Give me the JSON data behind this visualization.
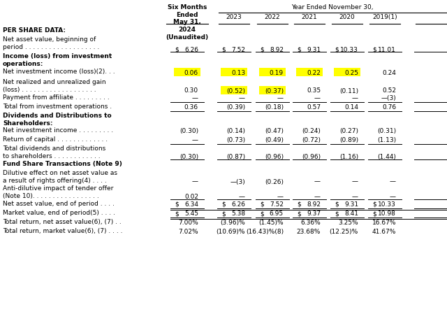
{
  "bg_color": "#FFFFFF",
  "text_color": "#000000",
  "highlight_color": "#FFFF00",
  "year_ended_label": "Year Ended November 30,",
  "col0_header": "Six Months\nEnded\nMay 31,\n2024\n(Unaudited)",
  "year_cols": [
    "2023",
    "2022",
    "2021",
    "2020",
    "2019(1)"
  ],
  "font_size": 6.5,
  "rows": [
    {
      "label": "PER SHARE DATA:",
      "bold": true,
      "italic": false,
      "vals": [
        "",
        "",
        "",
        "",
        "",
        ""
      ],
      "dollar": [
        0,
        0,
        0,
        0,
        0,
        0
      ],
      "hl": [
        0,
        0,
        0,
        0,
        0,
        0
      ],
      "ul": 0,
      "double_ul": 0,
      "val_align": "bottom"
    },
    {
      "label": "Net asset value, beginning of\nperiod . . . . . . . . . . . . . . . . . . .",
      "bold": false,
      "italic": false,
      "vals": [
        "6.26",
        "7.52",
        "8.92",
        "9.31",
        "10.33",
        "11.01"
      ],
      "dollar": [
        1,
        1,
        1,
        1,
        1,
        1
      ],
      "hl": [
        0,
        0,
        0,
        0,
        0,
        0
      ],
      "ul": 1,
      "double_ul": 0,
      "val_align": "bottom"
    },
    {
      "label": "Income (loss) from investment\noperations:",
      "bold": true,
      "italic": false,
      "vals": [
        "",
        "",
        "",
        "",
        "",
        ""
      ],
      "dollar": [
        0,
        0,
        0,
        0,
        0,
        0
      ],
      "hl": [
        0,
        0,
        0,
        0,
        0,
        0
      ],
      "ul": 0,
      "double_ul": 0,
      "val_align": "bottom"
    },
    {
      "label": "Net investment income (loss)(2). . .",
      "bold": false,
      "italic": false,
      "vals": [
        "0.06",
        "0.13",
        "0.19",
        "0.22",
        "0.25",
        "0.24"
      ],
      "dollar": [
        0,
        0,
        0,
        0,
        0,
        0
      ],
      "hl": [
        1,
        1,
        1,
        1,
        1,
        0
      ],
      "ul": 0,
      "double_ul": 0,
      "val_align": "center"
    },
    {
      "label": "Net realized and unrealized gain\n(loss) . . . . . . . . . . . . . . . . . . .",
      "bold": false,
      "italic": false,
      "vals": [
        "0.30",
        "(0.52)",
        "(0.37)",
        "0.35",
        "(0.11)",
        "0.52"
      ],
      "dollar": [
        0,
        0,
        0,
        0,
        0,
        0
      ],
      "hl": [
        0,
        1,
        1,
        0,
        0,
        0
      ],
      "ul": 0,
      "double_ul": 0,
      "val_align": "bottom"
    },
    {
      "label": "Payment from affiliate . . . . . . . . .",
      "bold": false,
      "italic": false,
      "vals": [
        "—",
        "—",
        "—",
        "—",
        "—",
        "—(3)"
      ],
      "dollar": [
        0,
        0,
        0,
        0,
        0,
        0
      ],
      "hl": [
        0,
        0,
        0,
        0,
        0,
        0
      ],
      "ul": 1,
      "double_ul": 0,
      "val_align": "center"
    },
    {
      "label": "Total from investment operations .",
      "bold": false,
      "italic": false,
      "vals": [
        "0.36",
        "(0.39)",
        "(0.18)",
        "0.57",
        "0.14",
        "0.76"
      ],
      "dollar": [
        0,
        0,
        0,
        0,
        0,
        0
      ],
      "hl": [
        0,
        0,
        0,
        0,
        0,
        0
      ],
      "ul": 1,
      "double_ul": 0,
      "val_align": "center"
    },
    {
      "label": "Dividends and Distributions to\nShareholders:",
      "bold": true,
      "italic": false,
      "vals": [
        "",
        "",
        "",
        "",
        "",
        ""
      ],
      "dollar": [
        0,
        0,
        0,
        0,
        0,
        0
      ],
      "hl": [
        0,
        0,
        0,
        0,
        0,
        0
      ],
      "ul": 0,
      "double_ul": 0,
      "val_align": "bottom"
    },
    {
      "label": "Net investment income . . . . . . . . .",
      "bold": false,
      "italic": false,
      "vals": [
        "(0.30)",
        "(0.14)",
        "(0.47)",
        "(0.24)",
        "(0.27)",
        "(0.31)"
      ],
      "dollar": [
        0,
        0,
        0,
        0,
        0,
        0
      ],
      "hl": [
        0,
        0,
        0,
        0,
        0,
        0
      ],
      "ul": 0,
      "double_ul": 0,
      "val_align": "center"
    },
    {
      "label": "Return of capital . . . . . . . . . . . . .",
      "bold": false,
      "italic": false,
      "vals": [
        "—",
        "(0.73)",
        "(0.49)",
        "(0.72)",
        "(0.89)",
        "(1.13)"
      ],
      "dollar": [
        0,
        0,
        0,
        0,
        0,
        0
      ],
      "hl": [
        0,
        0,
        0,
        0,
        0,
        0
      ],
      "ul": 1,
      "double_ul": 0,
      "val_align": "center"
    },
    {
      "label": "Total dividends and distributions\nto shareholders . . . . . . . . . . . .",
      "bold": false,
      "italic": false,
      "vals": [
        "(0.30)",
        "(0.87)",
        "(0.96)",
        "(0.96)",
        "(1.16)",
        "(1.44)"
      ],
      "dollar": [
        0,
        0,
        0,
        0,
        0,
        0
      ],
      "hl": [
        0,
        0,
        0,
        0,
        0,
        0
      ],
      "ul": 1,
      "double_ul": 0,
      "val_align": "bottom"
    },
    {
      "label": "Fund Share Transactions (Note 9)",
      "bold": true,
      "italic": false,
      "vals": [
        "",
        "",
        "",
        "",
        "",
        ""
      ],
      "dollar": [
        0,
        0,
        0,
        0,
        0,
        0
      ],
      "hl": [
        0,
        0,
        0,
        0,
        0,
        0
      ],
      "ul": 0,
      "double_ul": 0,
      "val_align": "bottom"
    },
    {
      "label": "Dilutive effect on net asset value as\na result of rights offering(4) . . . .",
      "bold": false,
      "italic": false,
      "vals": [
        "—",
        "—(3)",
        "(0.26)",
        "—",
        "—",
        "—"
      ],
      "dollar": [
        0,
        0,
        0,
        0,
        0,
        0
      ],
      "hl": [
        0,
        0,
        0,
        0,
        0,
        0
      ],
      "ul": 0,
      "double_ul": 0,
      "val_align": "bottom"
    },
    {
      "label": "Anti-dilutive impact of tender offer\n(Note 10). . . . . . . . . . . . . . . . .",
      "bold": false,
      "italic": false,
      "vals": [
        "0.02",
        "—",
        "—",
        "—",
        "—",
        "—"
      ],
      "dollar": [
        0,
        0,
        0,
        0,
        0,
        0
      ],
      "hl": [
        0,
        0,
        0,
        0,
        0,
        0
      ],
      "ul": 1,
      "double_ul": 0,
      "val_align": "bottom"
    },
    {
      "label": "Net asset value, end of period . . . .",
      "bold": false,
      "italic": false,
      "vals": [
        "6.34",
        "6.26",
        "7.52",
        "8.92",
        "9.31",
        "10.33"
      ],
      "dollar": [
        1,
        1,
        1,
        1,
        1,
        1
      ],
      "hl": [
        0,
        0,
        0,
        0,
        0,
        0
      ],
      "ul": 1,
      "double_ul": 1,
      "val_align": "center"
    },
    {
      "label": "Market value, end of period(5) . . . .",
      "bold": false,
      "italic": false,
      "vals": [
        "5.45",
        "5.38",
        "6.95",
        "9.37",
        "8.41",
        "10.98"
      ],
      "dollar": [
        1,
        1,
        1,
        1,
        1,
        1
      ],
      "hl": [
        0,
        0,
        0,
        0,
        0,
        0
      ],
      "ul": 1,
      "double_ul": 1,
      "val_align": "center"
    },
    {
      "label": "Total return, net asset value(6), (7) . .",
      "bold": false,
      "italic": false,
      "vals": [
        "7.00%",
        "(3.96)%",
        "(1.45)%",
        "6.36%",
        "3.25%",
        "16.67%"
      ],
      "dollar": [
        0,
        0,
        0,
        0,
        0,
        0
      ],
      "hl": [
        0,
        0,
        0,
        0,
        0,
        0
      ],
      "ul": 0,
      "double_ul": 0,
      "val_align": "center"
    },
    {
      "label": "Total return, market value(6), (7) . . . .",
      "bold": false,
      "italic": false,
      "vals": [
        "7.02%",
        "(10.69)%",
        "(16.43)%(8)",
        "23.68%",
        "(12.25)%",
        "41.67%"
      ],
      "dollar": [
        0,
        0,
        0,
        0,
        0,
        0
      ],
      "hl": [
        0,
        0,
        0,
        0,
        0,
        0
      ],
      "ul": 0,
      "double_ul": 0,
      "val_align": "center"
    }
  ]
}
